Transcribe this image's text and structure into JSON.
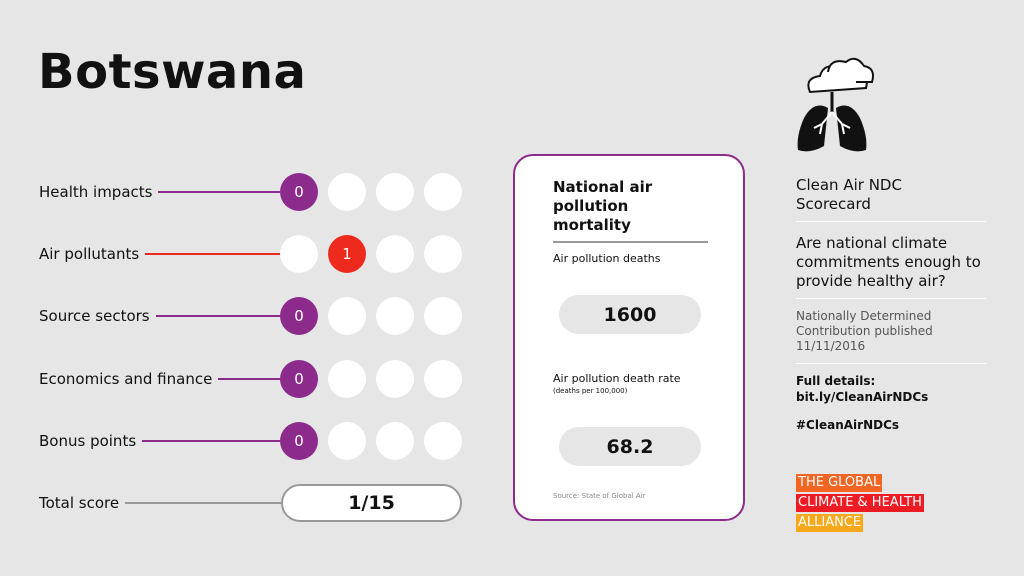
{
  "title": "Botswana",
  "score_rows": [
    {
      "label": "Health impacts",
      "score": 0,
      "color": "#8c2b8c"
    },
    {
      "label": "Air pollutants",
      "score": 1,
      "color": "#ee2a1e"
    },
    {
      "label": "Source sectors",
      "score": 0,
      "color": "#8c2b8c"
    },
    {
      "label": "Economics and finance",
      "score": 0,
      "color": "#8c2b8c"
    },
    {
      "label": "Bonus points",
      "score": 0,
      "color": "#8c2b8c"
    }
  ],
  "total": {
    "label": "Total score",
    "value": "1/15"
  },
  "mortality_card": {
    "title": "National air pollution mortality",
    "deaths_label": "Air pollution deaths",
    "deaths": 1600,
    "rate_label": "Air pollution death rate",
    "rate_unit": "(deaths per 100,000)",
    "rate": 68.2,
    "source": "Source: State of Global Air"
  },
  "sidebar": {
    "heading": "Clean Air NDC Scorecard",
    "question": "Are national climate commitments enough to provide healthy air?",
    "ndc_note": "Nationally Determined Contribution published",
    "ndc_date": "11/11/2016",
    "details_label": "Full details:",
    "details_link": "bit.ly/CleanAirNDCs",
    "hashtag": "#CleanAirNDCs",
    "logo": [
      "THE GLOBAL",
      "CLIMATE & HEALTH",
      "ALLIANCE"
    ]
  }
}
